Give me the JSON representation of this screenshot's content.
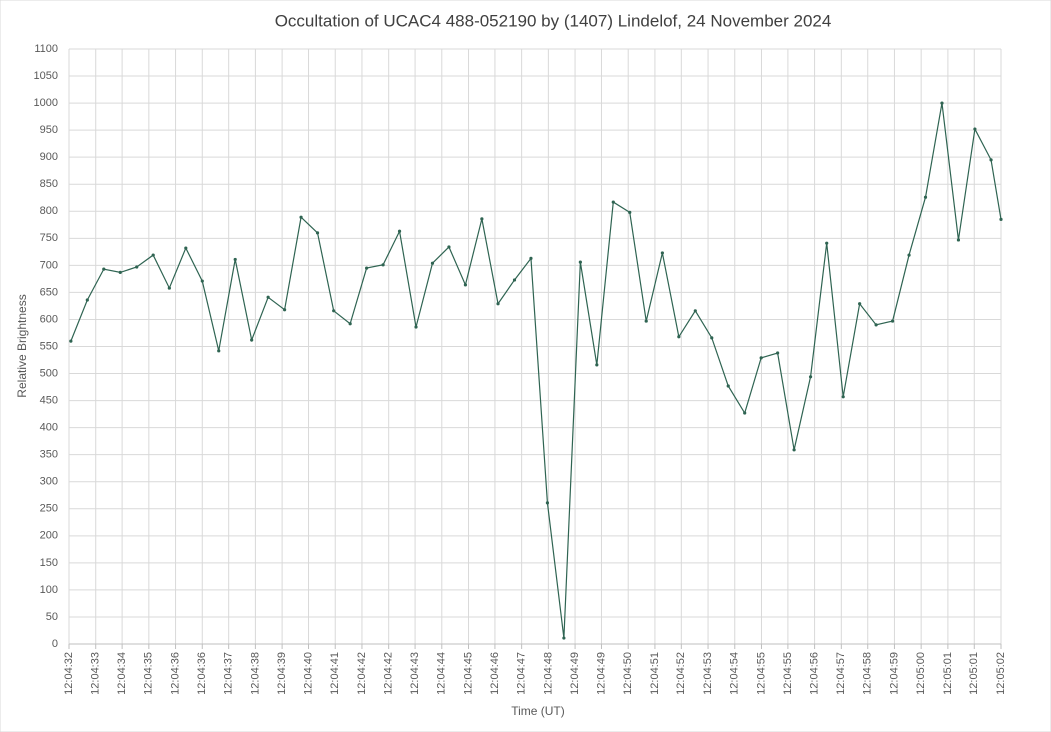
{
  "chart_data": {
    "type": "line",
    "title": "Occultation of UCAC4 488-052190 by (1407) Lindelof, 24 November 2024",
    "xlabel": "Time (UT)",
    "ylabel": "Relative Brightness",
    "x": [
      43472.06,
      43472.59,
      43473.12,
      43473.65,
      43474.18,
      43474.71,
      43475.23,
      43475.76,
      43476.29,
      43476.82,
      43477.35,
      43477.88,
      43478.41,
      43478.94,
      43479.47,
      43480.0,
      43480.52,
      43481.05,
      43481.58,
      43482.11,
      43482.64,
      43483.17,
      43483.7,
      43484.23,
      43484.76,
      43485.29,
      43485.81,
      43486.34,
      43486.87,
      43487.4,
      43487.93,
      43488.46,
      43488.99,
      43489.52,
      43490.05,
      43490.58,
      43491.1,
      43491.63,
      43492.16,
      43492.69,
      43493.22,
      43493.75,
      43494.28,
      43494.81,
      43495.34,
      43495.87,
      43496.39,
      43496.92,
      43497.45,
      43497.98,
      43498.51,
      43499.04,
      43499.57,
      43500.1,
      43500.63,
      43501.16,
      43501.68,
      43502.0
    ],
    "series": [
      {
        "name": "Relative Brightness",
        "color": "#2f6452",
        "values": [
          560,
          636,
          693,
          687,
          697,
          719,
          658,
          732,
          671,
          542,
          711,
          562,
          641,
          618,
          789,
          760,
          616,
          592,
          695,
          701,
          763,
          586,
          704,
          734,
          664,
          786,
          629,
          673,
          713,
          261,
          11,
          706,
          516,
          817,
          798,
          597,
          723,
          568,
          616,
          566,
          477,
          427,
          529,
          538,
          359,
          494,
          741,
          457,
          629,
          590,
          597,
          719,
          826,
          1000,
          747,
          952,
          895,
          785
        ]
      }
    ],
    "xlim": [
      43472,
      43502
    ],
    "xticks": [
      {
        "value": 43472,
        "label": "12:04:32"
      },
      {
        "value": 43472.86,
        "label": "12:04:33"
      },
      {
        "value": 43473.71,
        "label": "12:04:34"
      },
      {
        "value": 43474.57,
        "label": "12:04:35"
      },
      {
        "value": 43475.43,
        "label": "12:04:36"
      },
      {
        "value": 43476.29,
        "label": "12:04:36"
      },
      {
        "value": 43477.14,
        "label": "12:04:37"
      },
      {
        "value": 43478,
        "label": "12:04:38"
      },
      {
        "value": 43478.86,
        "label": "12:04:39"
      },
      {
        "value": 43479.71,
        "label": "12:04:40"
      },
      {
        "value": 43480.57,
        "label": "12:04:41"
      },
      {
        "value": 43481.43,
        "label": "12:04:42"
      },
      {
        "value": 43482.29,
        "label": "12:04:42"
      },
      {
        "value": 43483.14,
        "label": "12:04:43"
      },
      {
        "value": 43484,
        "label": "12:04:44"
      },
      {
        "value": 43484.86,
        "label": "12:04:45"
      },
      {
        "value": 43485.71,
        "label": "12:04:46"
      },
      {
        "value": 43486.57,
        "label": "12:04:47"
      },
      {
        "value": 43487.43,
        "label": "12:04:48"
      },
      {
        "value": 43488.29,
        "label": "12:04:49"
      },
      {
        "value": 43489.14,
        "label": "12:04:49"
      },
      {
        "value": 43490,
        "label": "12:04:50"
      },
      {
        "value": 43490.86,
        "label": "12:04:51"
      },
      {
        "value": 43491.71,
        "label": "12:04:52"
      },
      {
        "value": 43492.57,
        "label": "12:04:53"
      },
      {
        "value": 43493.43,
        "label": "12:04:54"
      },
      {
        "value": 43494.29,
        "label": "12:04:55"
      },
      {
        "value": 43495.14,
        "label": "12:04:55"
      },
      {
        "value": 43496,
        "label": "12:04:56"
      },
      {
        "value": 43496.86,
        "label": "12:04:57"
      },
      {
        "value": 43497.71,
        "label": "12:04:58"
      },
      {
        "value": 43498.57,
        "label": "12:04:59"
      },
      {
        "value": 43499.43,
        "label": "12:05:00"
      },
      {
        "value": 43500.29,
        "label": "12:05:01"
      },
      {
        "value": 43501.14,
        "label": "12:05:01"
      },
      {
        "value": 43502,
        "label": "12:05:02"
      }
    ],
    "ylim": [
      0,
      1100
    ],
    "yticks": [
      0,
      50,
      100,
      150,
      200,
      250,
      300,
      350,
      400,
      450,
      500,
      550,
      600,
      650,
      700,
      750,
      800,
      850,
      900,
      950,
      1000,
      1050,
      1100
    ],
    "grid": true
  }
}
